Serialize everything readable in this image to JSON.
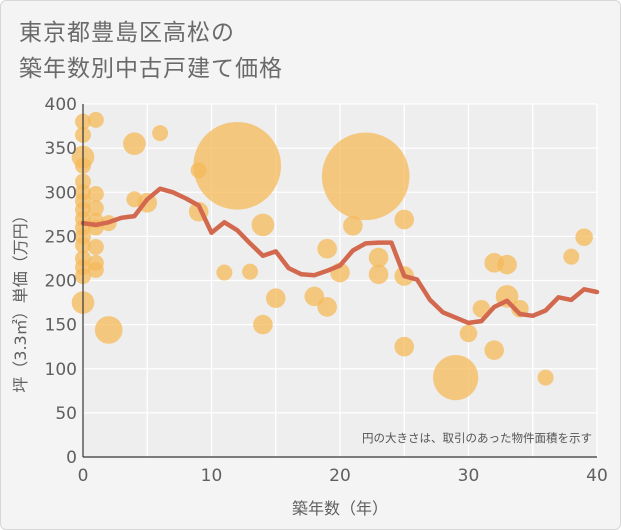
{
  "title_lines": [
    "東京都豊島区高松の",
    "築年数別中古戸建て価格"
  ],
  "chart_data": {
    "type": "scatter",
    "title": "東京都豊島区高松の築年数別中古戸建て価格",
    "xlabel": "築年数（年）",
    "ylabel": "坪（3.3㎡）単価（万円）",
    "xlim": [
      0,
      40
    ],
    "ylim": [
      0,
      400
    ],
    "xticks": [
      0,
      10,
      20,
      30,
      40
    ],
    "yticks": [
      0,
      50,
      100,
      150,
      200,
      250,
      300,
      350,
      400
    ],
    "grid": true,
    "note": "円の大きさは、取引のあった物件面積を示す",
    "colors": {
      "bubble": "#f5b95a",
      "trend": "#d2694f",
      "grid": "#ffffff"
    },
    "bubbles": [
      {
        "x": 0,
        "y": 380,
        "size": 1
      },
      {
        "x": 0,
        "y": 365,
        "size": 1
      },
      {
        "x": 0,
        "y": 340,
        "size": 2
      },
      {
        "x": 0,
        "y": 330,
        "size": 1
      },
      {
        "x": 0,
        "y": 312,
        "size": 1
      },
      {
        "x": 0,
        "y": 300,
        "size": 1
      },
      {
        "x": 0,
        "y": 290,
        "size": 1
      },
      {
        "x": 0,
        "y": 280,
        "size": 1
      },
      {
        "x": 0,
        "y": 270,
        "size": 1
      },
      {
        "x": 0,
        "y": 260,
        "size": 1
      },
      {
        "x": 0,
        "y": 250,
        "size": 1
      },
      {
        "x": 0,
        "y": 240,
        "size": 1
      },
      {
        "x": 0,
        "y": 225,
        "size": 1
      },
      {
        "x": 0,
        "y": 215,
        "size": 1
      },
      {
        "x": 0,
        "y": 205,
        "size": 1
      },
      {
        "x": 0,
        "y": 175,
        "size": 2
      },
      {
        "x": 1,
        "y": 382,
        "size": 1
      },
      {
        "x": 1,
        "y": 298,
        "size": 1
      },
      {
        "x": 1,
        "y": 282,
        "size": 1
      },
      {
        "x": 1,
        "y": 268,
        "size": 1
      },
      {
        "x": 1,
        "y": 260,
        "size": 1
      },
      {
        "x": 1,
        "y": 238,
        "size": 1
      },
      {
        "x": 1,
        "y": 220,
        "size": 1
      },
      {
        "x": 1,
        "y": 212,
        "size": 1
      },
      {
        "x": 2,
        "y": 265,
        "size": 1
      },
      {
        "x": 2,
        "y": 144,
        "size": 3
      },
      {
        "x": 4,
        "y": 355,
        "size": 2
      },
      {
        "x": 4,
        "y": 292,
        "size": 1
      },
      {
        "x": 5,
        "y": 288,
        "size": 1.5
      },
      {
        "x": 6,
        "y": 367,
        "size": 1
      },
      {
        "x": 9,
        "y": 325,
        "size": 1
      },
      {
        "x": 9,
        "y": 278,
        "size": 1.5
      },
      {
        "x": 11,
        "y": 209,
        "size": 1
      },
      {
        "x": 12,
        "y": 330,
        "size": 30
      },
      {
        "x": 13,
        "y": 210,
        "size": 1
      },
      {
        "x": 14,
        "y": 263,
        "size": 2
      },
      {
        "x": 14,
        "y": 150,
        "size": 1.5
      },
      {
        "x": 15,
        "y": 180,
        "size": 1.5
      },
      {
        "x": 18,
        "y": 182,
        "size": 1.5
      },
      {
        "x": 19,
        "y": 236,
        "size": 1.5
      },
      {
        "x": 19,
        "y": 170,
        "size": 1.5
      },
      {
        "x": 20,
        "y": 209,
        "size": 1.5
      },
      {
        "x": 21,
        "y": 262,
        "size": 1.5
      },
      {
        "x": 22,
        "y": 318,
        "size": 30
      },
      {
        "x": 23,
        "y": 226,
        "size": 1.5
      },
      {
        "x": 23,
        "y": 207,
        "size": 1.5
      },
      {
        "x": 25,
        "y": 269,
        "size": 1.5
      },
      {
        "x": 25,
        "y": 205,
        "size": 1.5
      },
      {
        "x": 25,
        "y": 125,
        "size": 1.5
      },
      {
        "x": 29,
        "y": 90,
        "size": 8
      },
      {
        "x": 30,
        "y": 140,
        "size": 1.2
      },
      {
        "x": 31,
        "y": 168,
        "size": 1.2
      },
      {
        "x": 32,
        "y": 220,
        "size": 1.5
      },
      {
        "x": 32,
        "y": 121,
        "size": 1.5
      },
      {
        "x": 33,
        "y": 218,
        "size": 1.5
      },
      {
        "x": 33,
        "y": 182,
        "size": 2
      },
      {
        "x": 34,
        "y": 168,
        "size": 1.2
      },
      {
        "x": 36,
        "y": 90,
        "size": 1
      },
      {
        "x": 38,
        "y": 227,
        "size": 1
      },
      {
        "x": 39,
        "y": 249,
        "size": 1.2
      }
    ],
    "trend": {
      "x": [
        0,
        1,
        2,
        3,
        4,
        5,
        6,
        7,
        8,
        9,
        10,
        11,
        12,
        13,
        14,
        15,
        16,
        17,
        18,
        19,
        20,
        21,
        22,
        23,
        24,
        25,
        26,
        27,
        28,
        29,
        30,
        31,
        32,
        33,
        34,
        35,
        36,
        37,
        38,
        39,
        40
      ],
      "y": [
        265,
        263,
        266,
        271,
        273,
        292,
        304,
        300,
        293,
        285,
        254,
        266,
        257,
        242,
        228,
        233,
        214,
        207,
        206,
        211,
        217,
        234,
        242,
        243,
        243,
        205,
        201,
        178,
        164,
        158,
        152,
        154,
        170,
        177,
        162,
        160,
        166,
        181,
        178,
        190,
        187
      ]
    }
  }
}
